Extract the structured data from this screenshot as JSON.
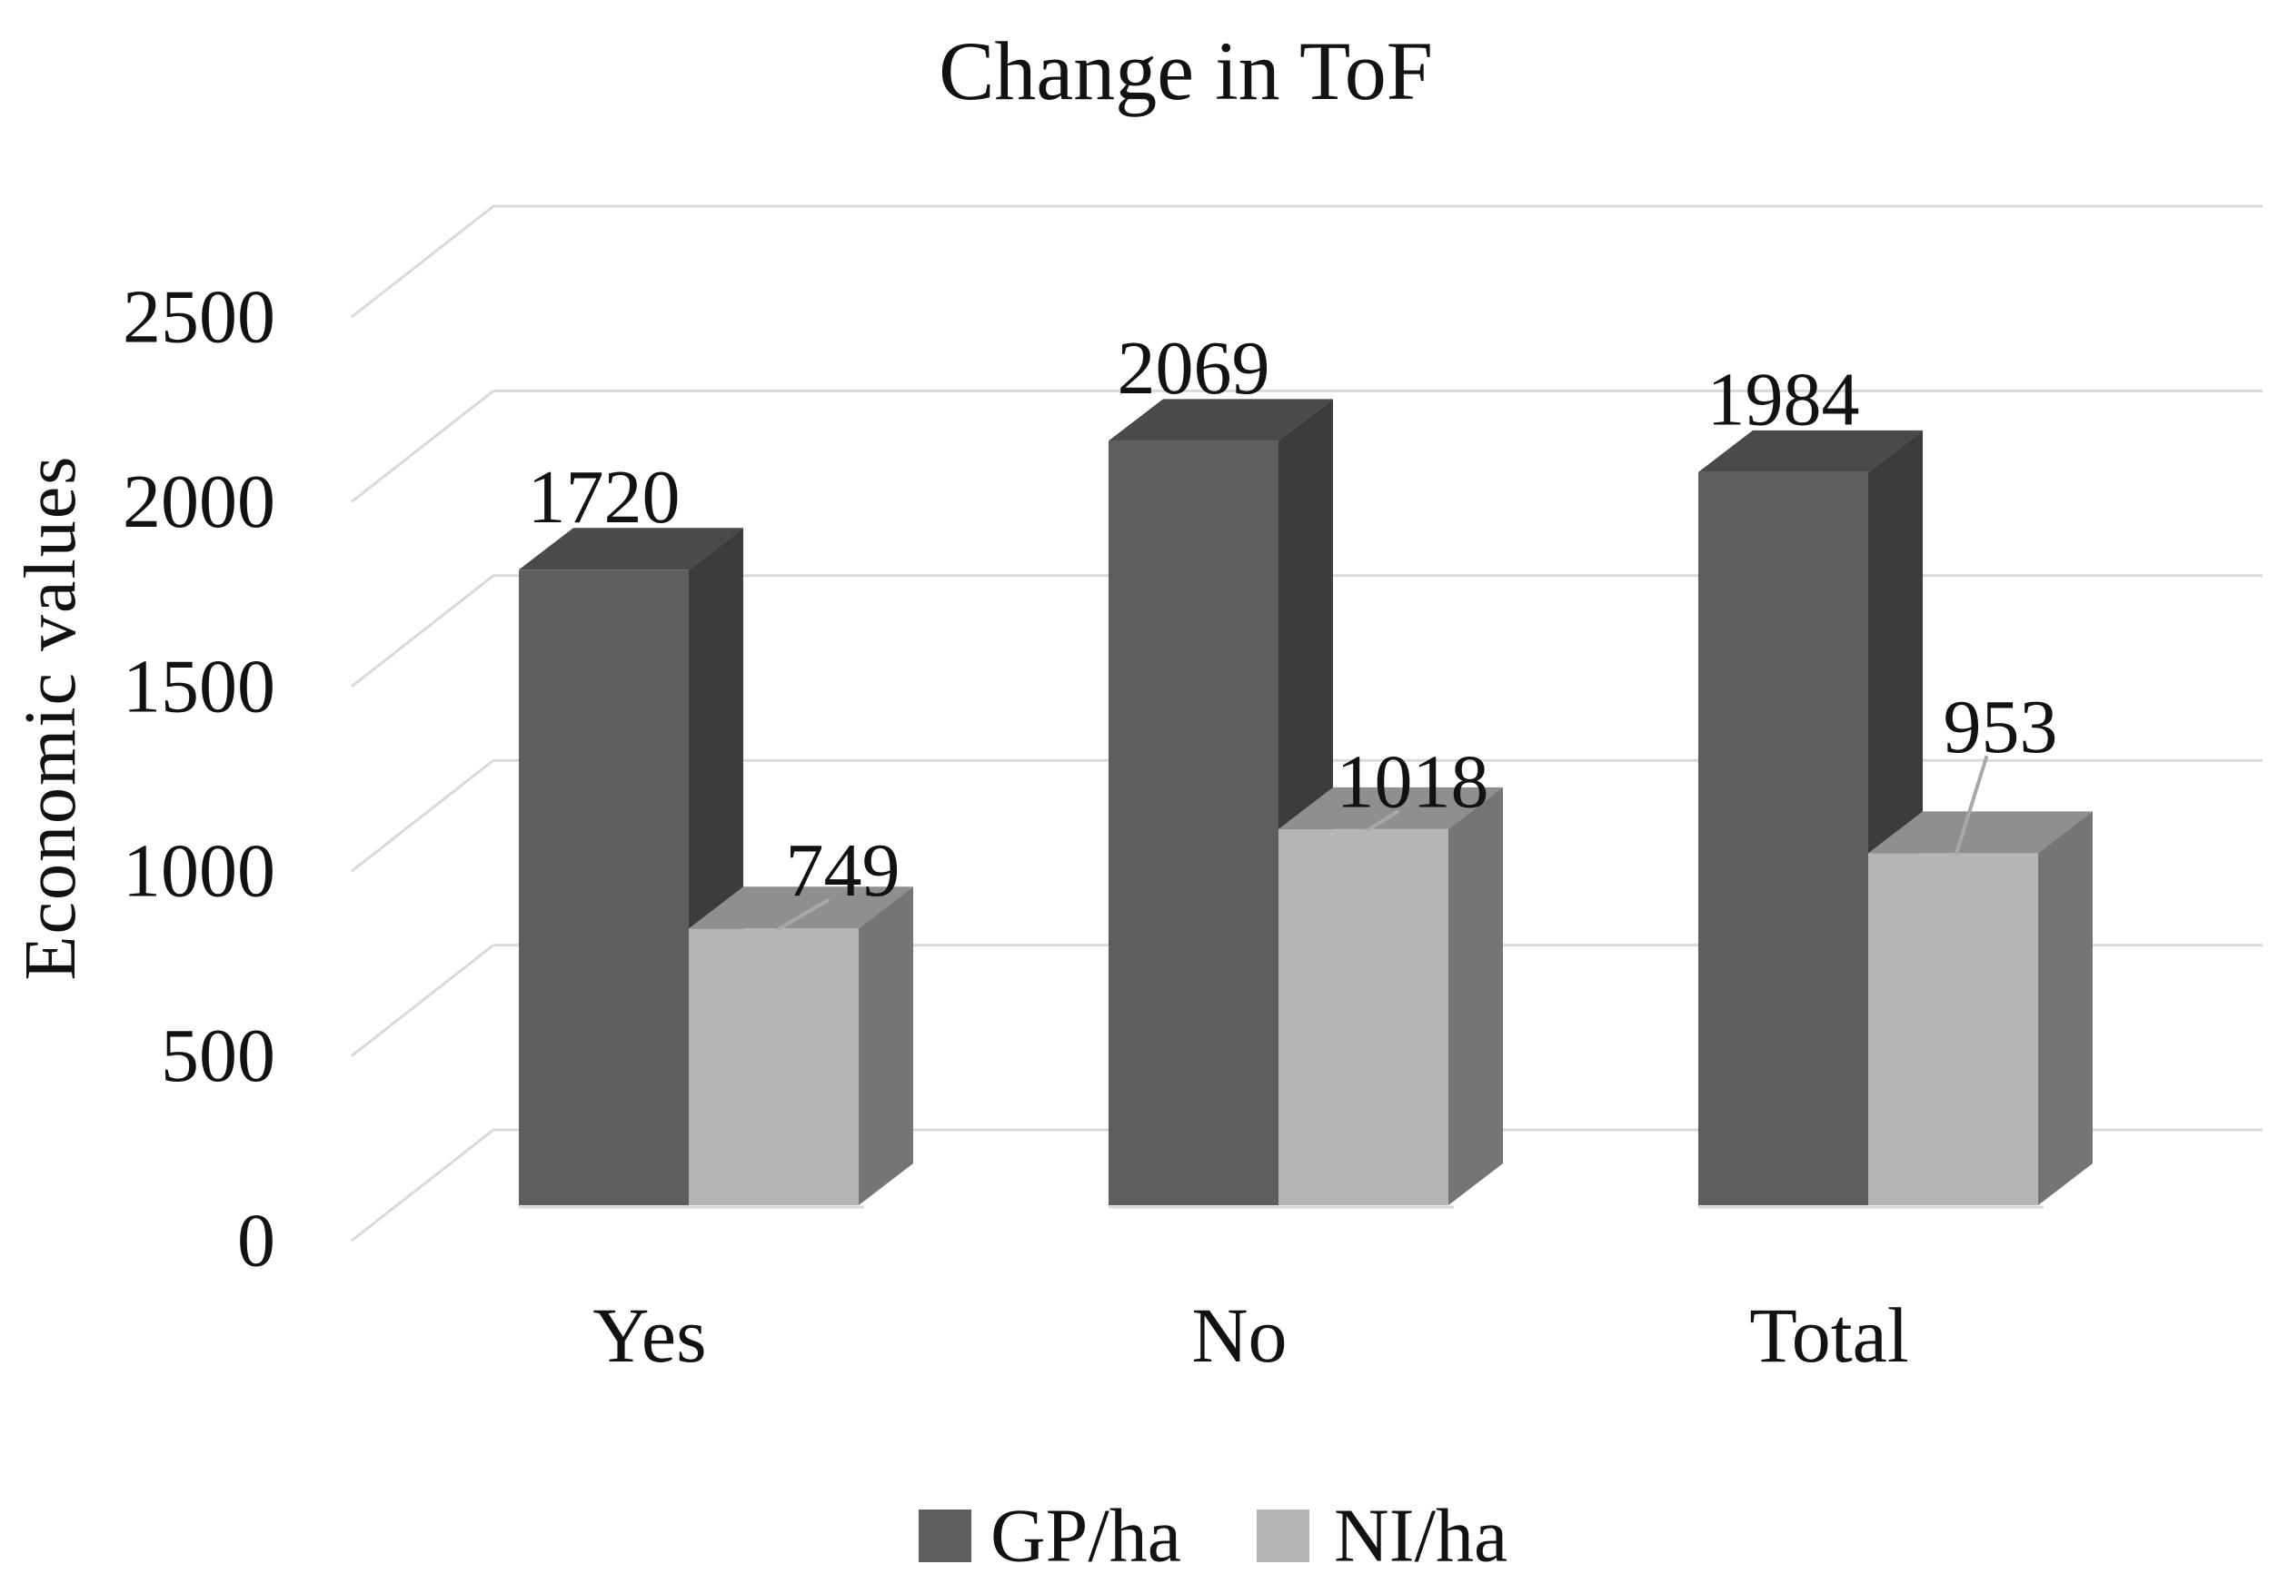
{
  "chart_data": {
    "type": "bar",
    "style": "3d-column",
    "title": "Change in ToF",
    "ylabel": "Economic values",
    "xlabel": "",
    "categories": [
      "Yes",
      "No",
      "Total"
    ],
    "series": [
      {
        "name": "GP/ha",
        "values": [
          1720,
          2069,
          1984
        ],
        "color": "#5e5e5e"
      },
      {
        "name": "NI/ha",
        "values": [
          749,
          1018,
          953
        ],
        "color": "#b5b5b5"
      }
    ],
    "y_ticks": [
      0,
      500,
      1000,
      1500,
      2000,
      2500
    ],
    "ylim": [
      0,
      2500
    ],
    "grid": true,
    "gridline_color": "#d9d9d9",
    "data_labels": true,
    "legend_position": "bottom",
    "background": "#ffffff"
  }
}
